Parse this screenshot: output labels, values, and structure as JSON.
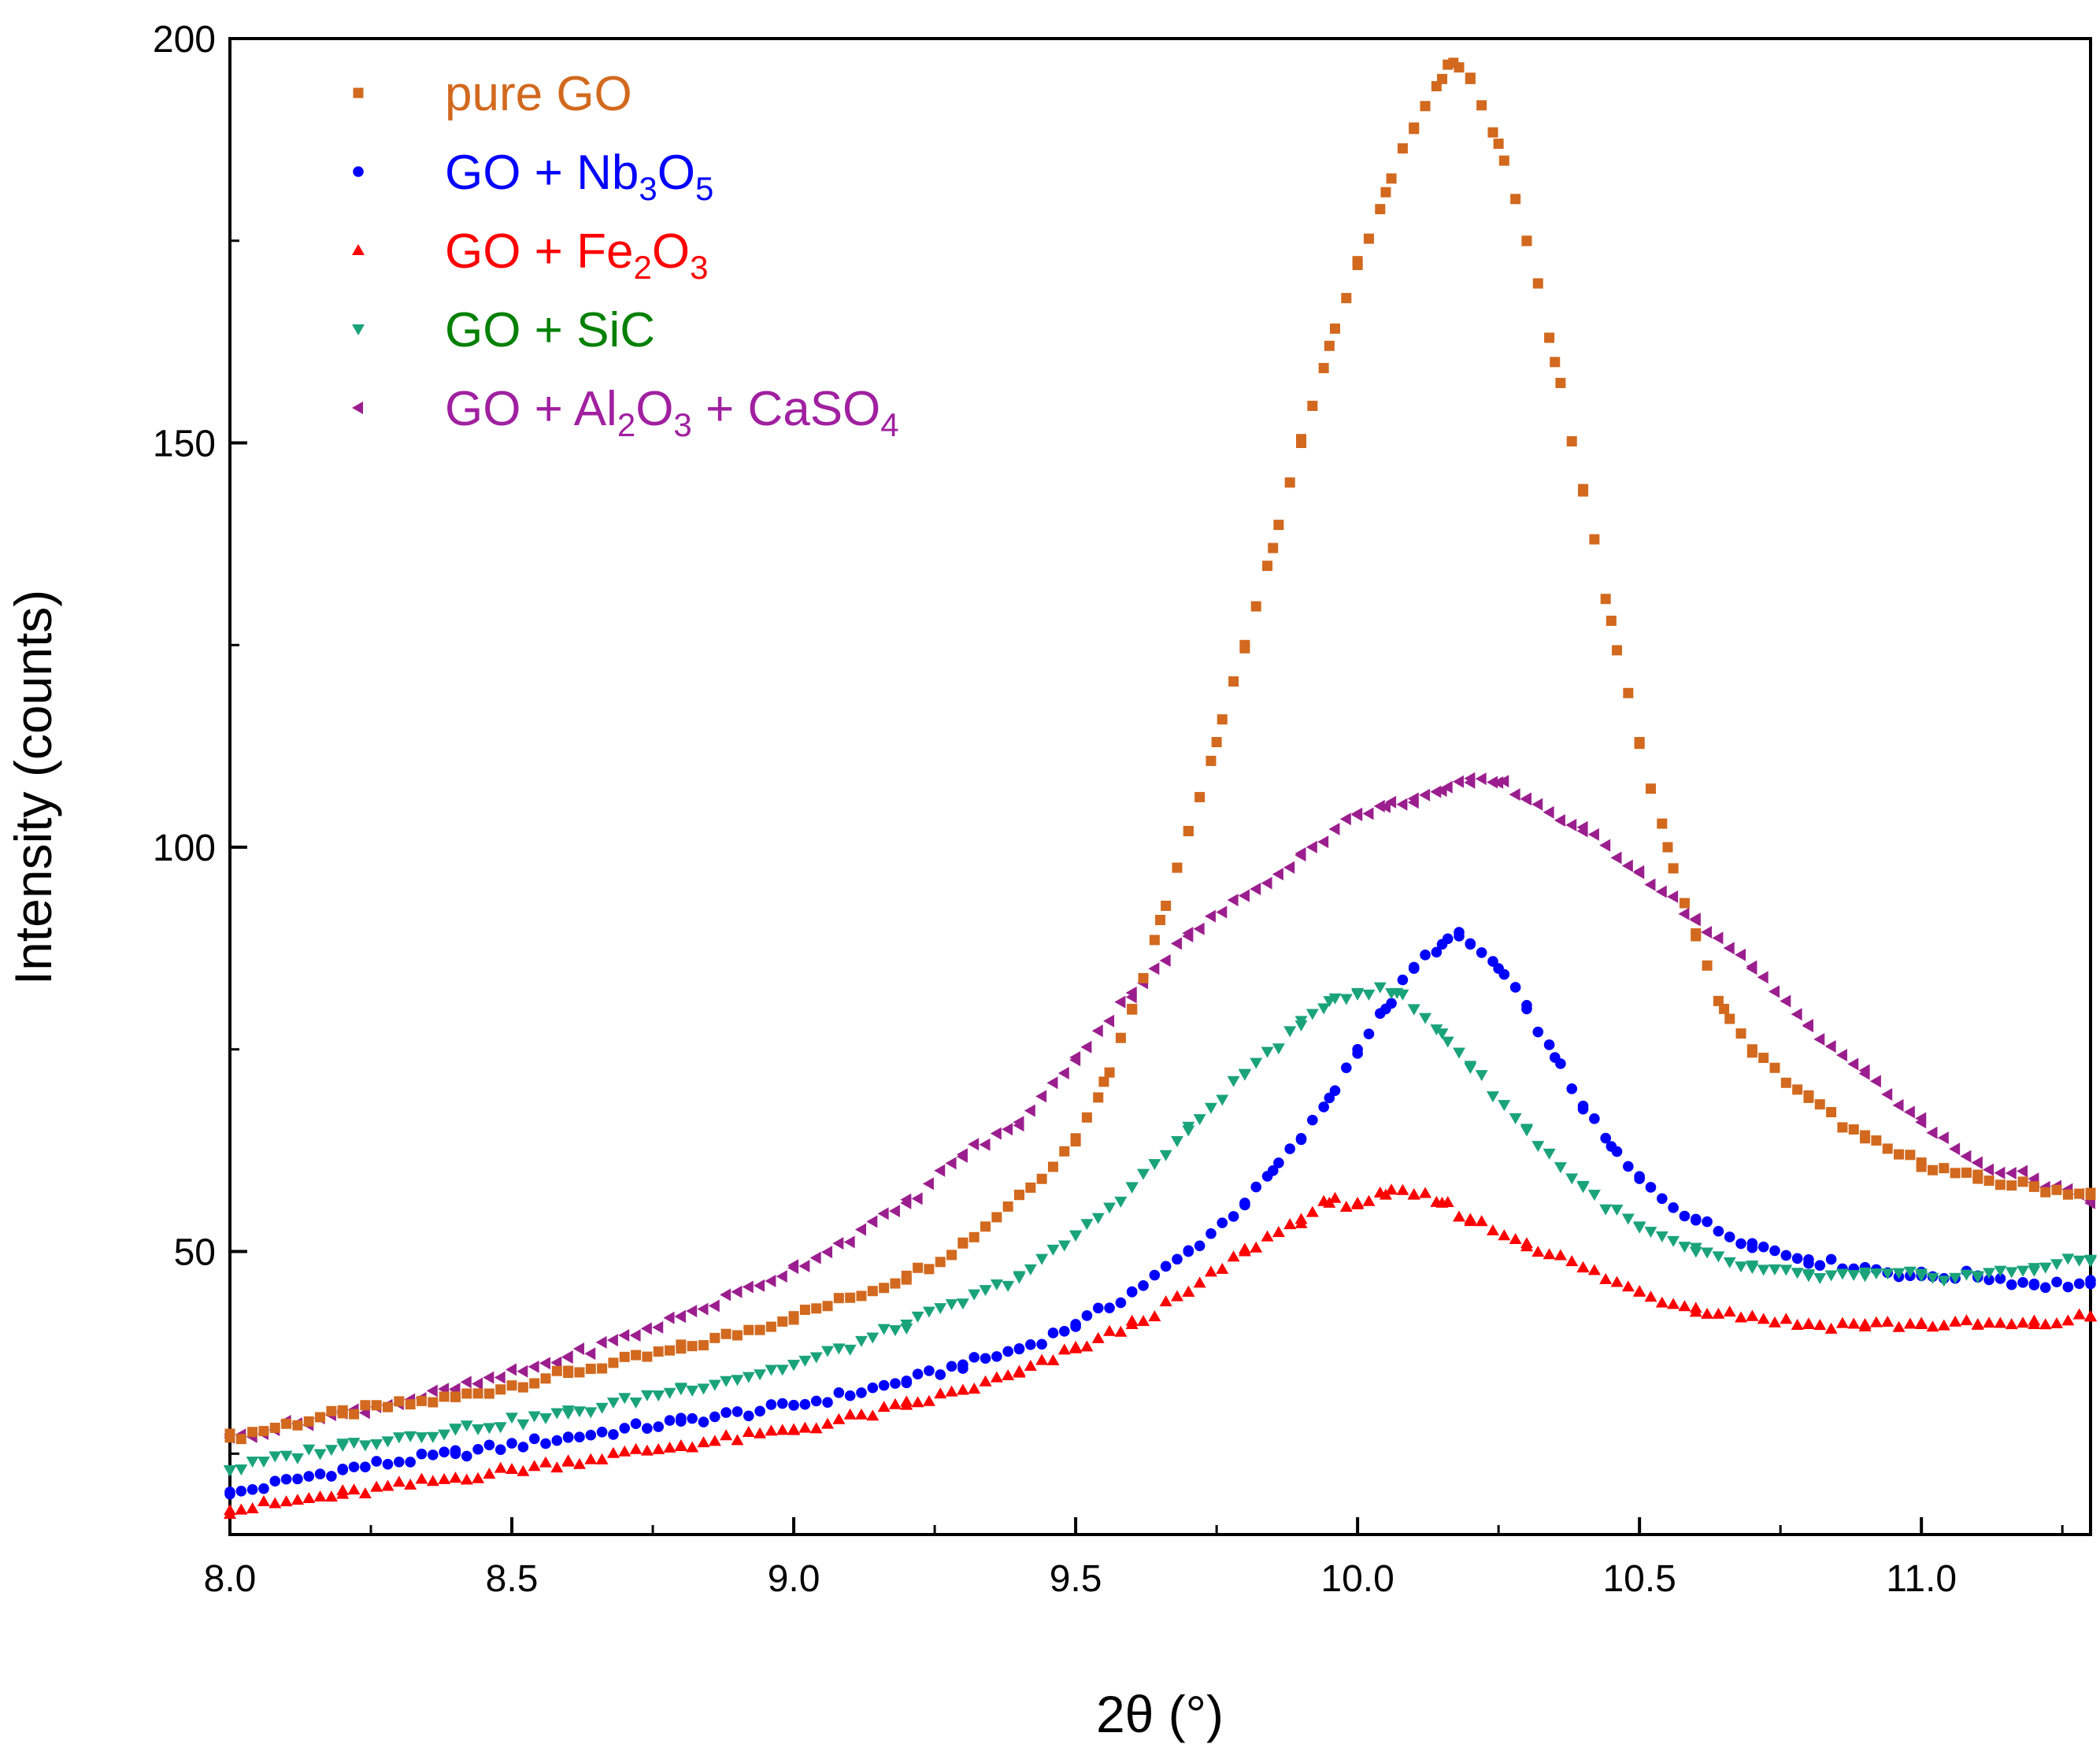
{
  "chart_data": {
    "type": "scatter",
    "title": "",
    "xlabel": "2θ (°)",
    "ylabel": "Intensity (counts)",
    "xlim": [
      8.0,
      11.3
    ],
    "ylim": [
      15,
      200
    ],
    "xticks": [
      "8.0",
      "8.5",
      "9.0",
      "9.5",
      "10.0",
      "10.5",
      "11.0"
    ],
    "xtick_values": [
      8.0,
      8.5,
      9.0,
      9.5,
      10.0,
      10.5,
      11.0
    ],
    "yticks": [
      "50",
      "100",
      "150",
      "200"
    ],
    "ytick_values": [
      50,
      100,
      150,
      200
    ],
    "grid": false,
    "legend_position": "top-left",
    "series": [
      {
        "name": "pure GO",
        "name_parts": [
          {
            "t": "pure GO",
            "sub": false
          }
        ],
        "marker": "square",
        "color": "#D2691E",
        "peak_x": 10.17,
        "peak_y": 197,
        "x": [
          8.0,
          8.2,
          8.4,
          8.6,
          8.8,
          9.0,
          9.2,
          9.3,
          9.4,
          9.5,
          9.55,
          9.6,
          9.65,
          9.7,
          9.75,
          9.8,
          9.85,
          9.9,
          9.95,
          10.0,
          10.05,
          10.1,
          10.15,
          10.17,
          10.2,
          10.25,
          10.3,
          10.35,
          10.4,
          10.45,
          10.5,
          10.55,
          10.6,
          10.65,
          10.7,
          10.8,
          10.9,
          11.0,
          11.1,
          11.2,
          11.3
        ],
        "y": [
          27,
          30,
          32,
          35,
          38,
          42,
          47,
          51,
          57,
          64,
          71,
          80,
          91,
          102,
          113,
          125,
          137,
          150,
          162,
          172,
          181,
          189,
          195,
          197,
          195,
          187,
          175,
          160,
          144,
          128,
          113,
          100,
          89,
          80,
          75,
          69,
          64,
          61,
          59,
          58,
          57
        ]
      },
      {
        "name": "GO + Nb3O5",
        "name_parts": [
          {
            "t": "GO + Nb",
            "sub": false
          },
          {
            "t": "3",
            "sub": true
          },
          {
            "t": "O",
            "sub": false
          },
          {
            "t": "5",
            "sub": true
          }
        ],
        "marker": "circle",
        "color": "#0000FF",
        "peak_x": 10.18,
        "peak_y": 89,
        "x": [
          8.0,
          8.2,
          8.4,
          8.6,
          8.8,
          9.0,
          9.2,
          9.3,
          9.4,
          9.5,
          9.6,
          9.7,
          9.8,
          9.85,
          9.9,
          9.95,
          10.0,
          10.05,
          10.1,
          10.15,
          10.18,
          10.2,
          10.25,
          10.3,
          10.35,
          10.4,
          10.45,
          10.5,
          10.6,
          10.7,
          10.8,
          10.9,
          11.0,
          11.1,
          11.2,
          11.3
        ],
        "y": [
          20,
          23,
          25,
          27,
          29,
          31,
          34,
          36,
          38,
          41,
          45,
          50,
          56,
          60,
          64,
          69,
          75,
          80,
          85,
          88,
          89,
          88,
          85,
          80,
          74,
          68,
          63,
          59,
          54,
          51,
          49,
          48,
          47,
          47,
          46,
          46
        ]
      },
      {
        "name": "GO + Fe2O3",
        "name_parts": [
          {
            "t": "GO + Fe",
            "sub": false
          },
          {
            "t": "2",
            "sub": true
          },
          {
            "t": "O",
            "sub": false
          },
          {
            "t": "3",
            "sub": true
          }
        ],
        "marker": "triangle-up",
        "color": "#FF0000",
        "peak_x": 10.1,
        "peak_y": 57,
        "x": [
          8.0,
          8.2,
          8.4,
          8.6,
          8.8,
          9.0,
          9.2,
          9.4,
          9.5,
          9.6,
          9.7,
          9.8,
          9.9,
          9.95,
          10.0,
          10.05,
          10.1,
          10.15,
          10.2,
          10.3,
          10.4,
          10.5,
          10.6,
          10.7,
          10.8,
          10.9,
          11.0,
          11.1,
          11.2,
          11.3
        ],
        "y": [
          18,
          20,
          22,
          24,
          26,
          28,
          31,
          35,
          38,
          41,
          45,
          50,
          54,
          56,
          56,
          57,
          57,
          56,
          54,
          51,
          48,
          45,
          43,
          42,
          41,
          41,
          41,
          41,
          41,
          42
        ]
      },
      {
        "name": "GO + SiC",
        "name_parts": [
          {
            "t": "GO + SiC",
            "sub": false
          }
        ],
        "marker": "triangle-down",
        "color": "#1AA37A",
        "label_color": "#008000",
        "peak_x": 10.07,
        "peak_y": 82,
        "x": [
          8.0,
          8.2,
          8.4,
          8.6,
          8.8,
          9.0,
          9.2,
          9.4,
          9.5,
          9.6,
          9.7,
          9.8,
          9.9,
          9.95,
          10.0,
          10.07,
          10.1,
          10.15,
          10.2,
          10.3,
          10.4,
          10.5,
          10.6,
          10.7,
          10.8,
          10.9,
          11.0,
          11.1,
          11.2,
          11.3
        ],
        "y": [
          23,
          26,
          28,
          30,
          33,
          36,
          41,
          47,
          52,
          58,
          65,
          72,
          78,
          81,
          82,
          82,
          80,
          77,
          73,
          65,
          58,
          53,
          50,
          48,
          47,
          47,
          47,
          47,
          48,
          49
        ]
      },
      {
        "name": "GO + Al2O3 + CaSO4",
        "name_parts": [
          {
            "t": "GO + Al",
            "sub": false
          },
          {
            "t": "2",
            "sub": true
          },
          {
            "t": "O",
            "sub": false
          },
          {
            "t": "3",
            "sub": true
          },
          {
            "t": " + CaSO",
            "sub": false
          },
          {
            "t": "4",
            "sub": true
          }
        ],
        "marker": "triangle-left",
        "color": "#9B1E8E",
        "label_color": "#A020A0",
        "peak_x": 10.25,
        "peak_y": 108,
        "x": [
          8.0,
          8.2,
          8.4,
          8.6,
          8.8,
          9.0,
          9.2,
          9.3,
          9.4,
          9.5,
          9.6,
          9.7,
          9.8,
          9.9,
          10.0,
          10.05,
          10.1,
          10.15,
          10.2,
          10.25,
          10.3,
          10.4,
          10.5,
          10.6,
          10.7,
          10.8,
          10.9,
          11.0,
          11.1,
          11.2,
          11.3
        ],
        "y": [
          27,
          30,
          33,
          37,
          42,
          48,
          56,
          62,
          66,
          74,
          82,
          89,
          94,
          99,
          104,
          105,
          106,
          107,
          108,
          108,
          106,
          102,
          97,
          91,
          85,
          78,
          72,
          66,
          61,
          59,
          56
        ]
      }
    ]
  }
}
